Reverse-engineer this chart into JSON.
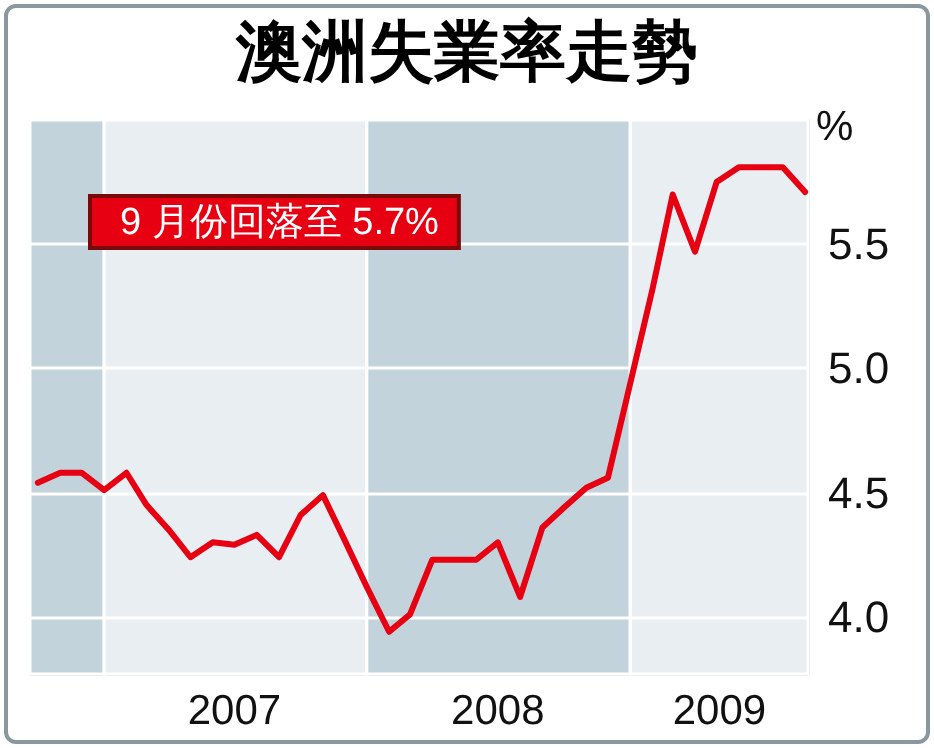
{
  "chart_data": {
    "type": "line",
    "title": "澳洲失業率走勢",
    "ylabel": "%",
    "annotations": [
      "9 月份回落至 5.7%"
    ],
    "x": [
      "2006-10",
      "2006-11",
      "2006-12",
      "2007-01",
      "2007-02",
      "2007-03",
      "2007-04",
      "2007-05",
      "2007-06",
      "2007-07",
      "2007-08",
      "2007-09",
      "2007-10",
      "2007-11",
      "2007-12",
      "2008-01",
      "2008-02",
      "2008-03",
      "2008-04",
      "2008-05",
      "2008-06",
      "2008-07",
      "2008-08",
      "2008-09",
      "2008-10",
      "2008-11",
      "2008-12",
      "2009-01",
      "2009-02",
      "2009-03",
      "2009-04",
      "2009-05",
      "2009-06",
      "2009-07",
      "2009-08",
      "2009-09"
    ],
    "series": [
      {
        "color": "#e60012",
        "values": [
          4.54,
          4.58,
          4.58,
          4.51,
          4.58,
          4.45,
          4.35,
          4.24,
          4.3,
          4.29,
          4.33,
          4.24,
          4.41,
          4.49,
          4.31,
          4.12,
          3.94,
          4.01,
          4.23,
          4.23,
          4.23,
          4.3,
          4.08,
          4.36,
          4.44,
          4.52,
          4.56,
          4.94,
          5.32,
          5.7,
          5.47,
          5.75,
          5.81,
          5.81,
          5.81,
          5.71
        ]
      }
    ],
    "xlim": [
      "2006-09-20",
      "2009-09-05"
    ],
    "xticks": [
      {
        "value": "2007-07-01",
        "label": "2007"
      },
      {
        "value": "2008-07-01",
        "label": "2008"
      },
      {
        "value": "2009-05-05",
        "label": "2009"
      }
    ],
    "ylim": [
      3.77,
      6.0
    ],
    "yticks": [
      {
        "value": 4.0,
        "label": "4.0"
      },
      {
        "value": 4.5,
        "label": "4.5"
      },
      {
        "value": 5.0,
        "label": "5.0"
      },
      {
        "value": 5.5,
        "label": "5.5"
      }
    ],
    "bands": [
      {
        "axis": "x",
        "from": "2006-09-20",
        "to": "2007-01-01",
        "color": "#c2d3db"
      },
      {
        "axis": "x",
        "from": "2007-01-01",
        "to": "2008-01-01",
        "color": "#e8eef2"
      },
      {
        "axis": "x",
        "from": "2008-01-01",
        "to": "2009-01-01",
        "color": "#c2d3db"
      },
      {
        "axis": "x",
        "from": "2009-01-01",
        "to": "2009-09-05",
        "color": "#e8eef2"
      }
    ],
    "grid": "y",
    "marker": "none",
    "line_style": "solid"
  }
}
